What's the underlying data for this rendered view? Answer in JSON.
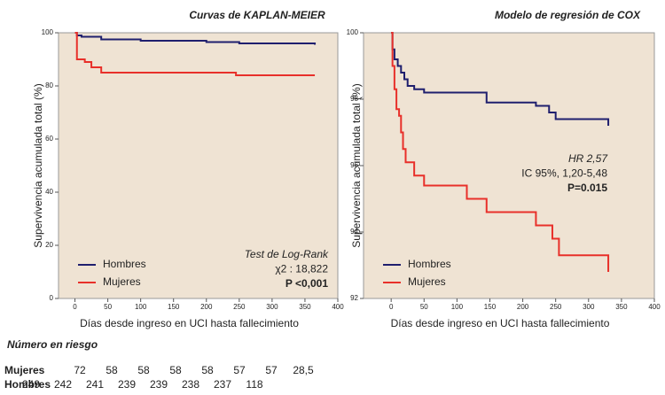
{
  "chart_data": [
    {
      "type": "line",
      "drawstyle": "steps-post",
      "title": "Curvas de KAPLAN-MEIER",
      "xlabel": "Días desde ingreso en UCI hasta fallecimiento",
      "ylabel": "Supervivencia acumulada total (%)",
      "xlim": [
        -25,
        400
      ],
      "xticks": [
        0,
        50,
        100,
        150,
        200,
        250,
        300,
        350,
        400
      ],
      "ylim": [
        0,
        100
      ],
      "yticks": [
        0,
        20,
        40,
        60,
        80,
        100
      ],
      "legend": "lower left",
      "annotations": [
        "Test de Log-Rank",
        "χ2 : 18,822",
        "P <0,001"
      ],
      "series": [
        {
          "name": "Hombres",
          "color": "#1f1f6e",
          "x": [
            0,
            3,
            10,
            40,
            100,
            200,
            250,
            365
          ],
          "values": [
            100,
            99,
            98.5,
            97.5,
            97,
            96.5,
            96,
            95.5
          ]
        },
        {
          "name": "Mujeres",
          "color": "#e8302a",
          "x": [
            0,
            3,
            15,
            25,
            40,
            245,
            365
          ],
          "values": [
            100,
            90,
            89,
            87,
            85,
            84,
            84
          ]
        }
      ]
    },
    {
      "type": "line",
      "drawstyle": "steps-post",
      "title": "Modelo de regresión de COX",
      "xlabel": "Días desde ingreso en UCI hasta fallecimiento",
      "ylabel": "Supervivencia acumulada total (%)",
      "xlim": [
        -42,
        400
      ],
      "xticks": [
        0,
        50,
        100,
        150,
        200,
        250,
        300,
        350,
        400
      ],
      "ylim": [
        92,
        100
      ],
      "yticks": [
        92,
        94,
        96,
        98,
        100
      ],
      "legend": "lower left",
      "annotations": [
        "HR 2,57",
        "IC 95%, 1,20-5,48",
        "P=0.015"
      ],
      "series": [
        {
          "name": "Hombres",
          "color": "#1f1f6e",
          "x": [
            0,
            2,
            5,
            10,
            15,
            20,
            25,
            35,
            50,
            145,
            220,
            240,
            250,
            330
          ],
          "values": [
            100,
            99.5,
            99.2,
            99,
            98.8,
            98.6,
            98.4,
            98.3,
            98.2,
            97.9,
            97.8,
            97.6,
            97.4,
            97.2
          ]
        },
        {
          "name": "Mujeres",
          "color": "#e8302a",
          "x": [
            0,
            2,
            5,
            8,
            12,
            15,
            18,
            22,
            35,
            50,
            115,
            145,
            220,
            245,
            255,
            330
          ],
          "values": [
            100,
            99,
            98.3,
            97.7,
            97.5,
            97,
            96.5,
            96.1,
            95.7,
            95.4,
            95,
            94.6,
            94.2,
            93.8,
            93.3,
            92.8
          ]
        }
      ]
    }
  ],
  "risk_table": {
    "title": "Número en riesgo",
    "rows": [
      {
        "label": "Mujeres",
        "color": "#e8302a",
        "values": [
          "72",
          "58",
          "58",
          "58",
          "58",
          "57",
          "57",
          "28,5"
        ]
      },
      {
        "label": "Hombres",
        "color": "#1f1f6e",
        "values": [
          "249",
          "242",
          "241",
          "239",
          "239",
          "238",
          "237",
          "118"
        ]
      }
    ]
  }
}
